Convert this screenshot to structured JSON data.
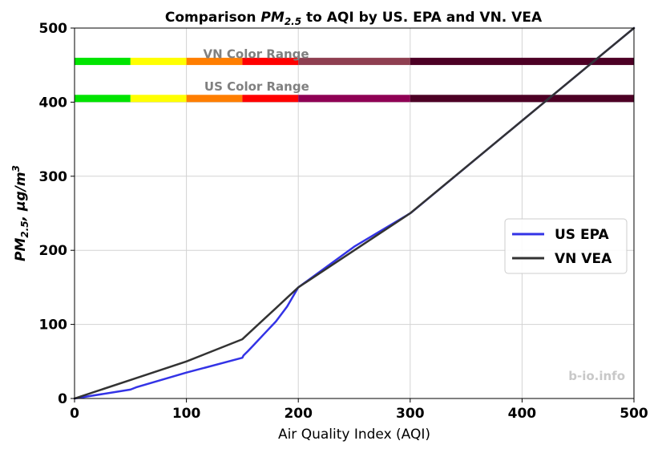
{
  "chart_data": {
    "type": "line",
    "title_prefix": "Comparison ",
    "title_symbol": "PM",
    "title_subscript": "2.5",
    "title_suffix": " to AQI by US. EPA and VN. VEA",
    "xlabel": "Air Quality Index (AQI)",
    "ylabel_symbol": "PM",
    "ylabel_subscript": "2.5",
    "ylabel_unit": ", µg/m",
    "ylabel_superscript": "3",
    "xlim": [
      0,
      500
    ],
    "ylim": [
      0,
      500
    ],
    "xticks": [
      "0",
      "100",
      "200",
      "300",
      "400",
      "500"
    ],
    "yticks": [
      "0",
      "100",
      "200",
      "300",
      "400",
      "500"
    ],
    "grid": true,
    "legend_position": "center-right",
    "series": [
      {
        "name": "US EPA",
        "color": "#3333e6",
        "x": [
          0,
          50,
          55,
          100,
          150,
          151,
          155,
          160,
          170,
          180,
          190,
          200,
          250,
          300,
          301,
          400,
          500
        ],
        "y": [
          0,
          12,
          15,
          35,
          55,
          58,
          64,
          72,
          88,
          104,
          124,
          150,
          205,
          250,
          251,
          375,
          500
        ]
      },
      {
        "name": "VN VEA",
        "color": "#333333",
        "x": [
          0,
          50,
          100,
          150,
          160,
          170,
          180,
          190,
          200,
          250,
          300,
          400,
          500
        ],
        "y": [
          0,
          25,
          50,
          80,
          94,
          108,
          122,
          136,
          150,
          200,
          250,
          375,
          500
        ]
      }
    ],
    "color_ranges": [
      {
        "label": "VN Color Range",
        "y": 455,
        "label_x": 115,
        "label_y": 466,
        "segments": [
          {
            "from": 0,
            "to": 50,
            "color": "#00e400"
          },
          {
            "from": 50,
            "to": 100,
            "color": "#ffff00"
          },
          {
            "from": 100,
            "to": 150,
            "color": "#ff7e00"
          },
          {
            "from": 150,
            "to": 200,
            "color": "#ff0000"
          },
          {
            "from": 200,
            "to": 300,
            "color": "#8f3f51"
          },
          {
            "from": 300,
            "to": 500,
            "color": "#4d0025"
          }
        ]
      },
      {
        "label": "US Color Range",
        "y": 405,
        "label_x": 116,
        "label_y": 422,
        "segments": [
          {
            "from": 0,
            "to": 50,
            "color": "#00e400"
          },
          {
            "from": 50,
            "to": 100,
            "color": "#ffff00"
          },
          {
            "from": 100,
            "to": 150,
            "color": "#ff7e00"
          },
          {
            "from": 150,
            "to": 200,
            "color": "#ff0000"
          },
          {
            "from": 200,
            "to": 300,
            "color": "#8f0054"
          },
          {
            "from": 300,
            "to": 500,
            "color": "#4d0025"
          }
        ]
      }
    ],
    "watermark": "b-io.info"
  }
}
